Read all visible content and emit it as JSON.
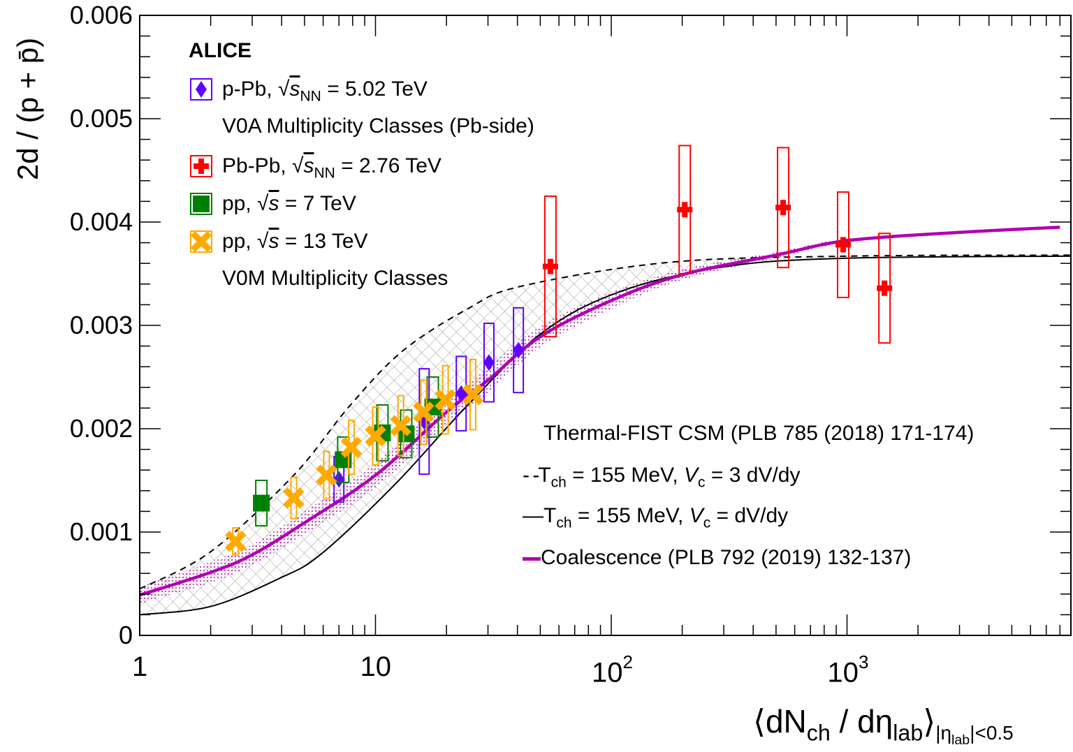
{
  "chart_data": {
    "type": "scatter",
    "title": "",
    "xlabel": {
      "main": "⟨dN",
      "sub1": "ch",
      "mid": " / dη",
      "sub2": "lab",
      "close": "⟩",
      "cond": "|η",
      "cond_sub": "lab",
      "cond_end": "|<0.5"
    },
    "ylabel": "2d / (p + p̄)",
    "xscale": "log",
    "xlim": [
      1,
      8900
    ],
    "ylim": [
      0,
      0.006
    ],
    "yticks": [
      "0",
      "0.001",
      "0.002",
      "0.003",
      "0.004",
      "0.005",
      "0.006"
    ],
    "ytick_values": [
      0,
      0.001,
      0.002,
      0.003,
      0.004,
      0.005,
      0.006
    ],
    "xticks": [
      {
        "base": "1",
        "exp": ""
      },
      {
        "base": "10",
        "exp": ""
      },
      {
        "base": "10",
        "exp": "2"
      },
      {
        "base": "10",
        "exp": "3"
      }
    ],
    "xtick_values": [
      1,
      10,
      100,
      1000
    ],
    "experiment": "ALICE",
    "series": [
      {
        "name": "p-Pb",
        "label_pre": "p-Pb, √",
        "label_s": "s",
        "label_sub": "NN",
        "label_post": " = 5.02 TeV",
        "note": "V0A Multiplicity Classes (Pb-side)",
        "color": "#6000ff",
        "marker": "diamond",
        "points": [
          [
            7.0,
            0.00151,
            0.00022
          ],
          [
            16.1,
            0.00207,
            0.00051
          ],
          [
            23.1,
            0.00234,
            0.00036
          ],
          [
            30.3,
            0.00264,
            0.00038
          ],
          [
            40.4,
            0.00276,
            0.00041
          ]
        ]
      },
      {
        "name": "Pb-Pb",
        "label_pre": "Pb-Pb, √",
        "label_s": "s",
        "label_sub": "NN",
        "label_post": " = 2.76 TeV",
        "note": "",
        "color": "#ff0000",
        "marker": "cross",
        "points": [
          [
            55.2,
            0.00357,
            0.00068
          ],
          [
            205,
            0.00412,
            0.00062
          ],
          [
            536,
            0.00414,
            0.00058
          ],
          [
            963,
            0.00378,
            0.00051
          ],
          [
            1442,
            0.00336,
            0.00053
          ]
        ]
      },
      {
        "name": "pp 7 TeV",
        "label_pre": "pp, √",
        "label_s": "s",
        "label_sub": "",
        "label_post": " = 7 TeV",
        "note": "",
        "color": "#008000",
        "marker": "square",
        "points": [
          [
            3.28,
            0.00128,
            0.00022
          ],
          [
            7.3,
            0.0017,
            0.00022
          ],
          [
            10.7,
            0.00196,
            0.00027
          ],
          [
            13.5,
            0.00195,
            0.00023
          ],
          [
            17.5,
            0.00221,
            0.00029
          ]
        ]
      },
      {
        "name": "pp 13 TeV",
        "label_pre": "pp, √",
        "label_s": "s",
        "label_sub": "",
        "label_post": " = 13 TeV",
        "note": "V0M Multiplicity Classes",
        "color": "#ffaa00",
        "marker": "xcross",
        "points": [
          [
            2.55,
            0.00091,
            0.00013
          ],
          [
            4.5,
            0.00133,
            0.0002
          ],
          [
            6.2,
            0.00155,
            0.00023
          ],
          [
            7.9,
            0.00182,
            0.00026
          ],
          [
            10.0,
            0.00193,
            0.00028
          ],
          [
            12.8,
            0.00203,
            0.00029
          ],
          [
            16.0,
            0.00216,
            0.00031
          ],
          [
            19.8,
            0.00228,
            0.00033
          ],
          [
            25.9,
            0.00233,
            0.00034
          ]
        ]
      }
    ],
    "models": {
      "title": "Thermal-FIST CSM (PLB 785 (2018) 171-174)",
      "csm_3": {
        "pre": "T",
        "sub": "ch",
        "mid": " = 155 MeV, ",
        "v": "V",
        "vsub": "c",
        "post": " = 3 dV/dy",
        "points": [
          [
            1,
            0.00045
          ],
          [
            2,
            0.00081
          ],
          [
            4.5,
            0.00155
          ],
          [
            7.7,
            0.00221
          ],
          [
            13,
            0.00275
          ],
          [
            24.6,
            0.00316
          ],
          [
            41.7,
            0.00338
          ],
          [
            176,
            0.00361
          ],
          [
            1000,
            0.00367
          ],
          [
            8900,
            0.00368
          ]
        ]
      },
      "csm_1": {
        "pre": "T",
        "sub": "ch",
        "mid": " = 155 MeV, ",
        "v": "V",
        "vsub": "c",
        "post": " = dV/dy",
        "points": [
          [
            1,
            0.0002
          ],
          [
            2,
            0.00028
          ],
          [
            3.9,
            0.00055
          ],
          [
            5.9,
            0.00079
          ],
          [
            12.2,
            0.00147
          ],
          [
            24.2,
            0.00221
          ],
          [
            51,
            0.00293
          ],
          [
            110,
            0.00333
          ],
          [
            307,
            0.00357
          ],
          [
            1000,
            0.00365
          ],
          [
            8900,
            0.00367
          ]
        ]
      },
      "coalescence": {
        "label": "Coalescence (PLB 792 (2019) 132-137)",
        "color": "#b000b0",
        "points": [
          [
            1,
            0.00039,
            8e-05
          ],
          [
            2,
            0.00061,
            0.0001
          ],
          [
            3,
            0.00078,
            0.0001
          ],
          [
            5,
            0.00109,
            0.00011
          ],
          [
            10,
            0.00155,
            0.00012
          ],
          [
            20,
            0.00216,
            0.00012
          ],
          [
            30,
            0.00247,
            0.00012
          ],
          [
            50,
            0.00289,
            0.0001
          ],
          [
            100,
            0.00324,
            8e-05
          ],
          [
            200,
            0.00349,
            5e-05
          ],
          [
            500,
            0.00368,
            3e-05
          ],
          [
            1000,
            0.00382,
            2e-05
          ],
          [
            3000,
            0.0039,
            1e-05
          ],
          [
            8000,
            0.00395,
            1e-05
          ]
        ]
      }
    }
  }
}
